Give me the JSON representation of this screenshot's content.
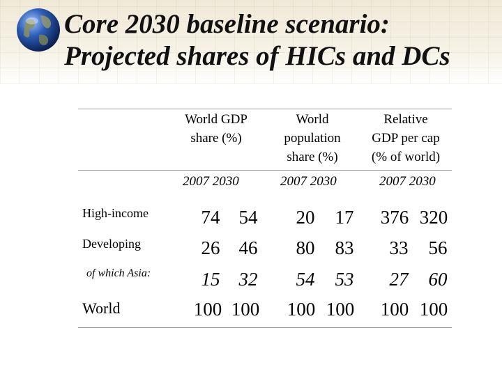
{
  "title": {
    "line1": "Core 2030 baseline scenario:",
    "line2": "Projected shares of HICs and DCs"
  },
  "logo_icon": "globe-icon",
  "columns": [
    {
      "header": [
        "World GDP",
        "share (%)"
      ],
      "years": "2007  2030"
    },
    {
      "header": [
        "World",
        "population",
        "share (%)"
      ],
      "years": "2007  2030"
    },
    {
      "header": [
        "Relative",
        "GDP per cap",
        "(% of world)"
      ],
      "years": "2007  2030"
    }
  ],
  "rows": [
    {
      "label": "High-income",
      "values": [
        "74",
        "54",
        "20",
        "17",
        "376",
        "320"
      ]
    },
    {
      "label": "Developing",
      "values": [
        "26",
        "46",
        "80",
        "83",
        "33",
        "56"
      ]
    },
    {
      "label": "of which Asia:",
      "values": [
        "15",
        "32",
        "54",
        "53",
        "27",
        "60"
      ]
    },
    {
      "label": "World",
      "values": [
        "100",
        "100",
        "100",
        "100",
        "100",
        "100"
      ]
    }
  ]
}
